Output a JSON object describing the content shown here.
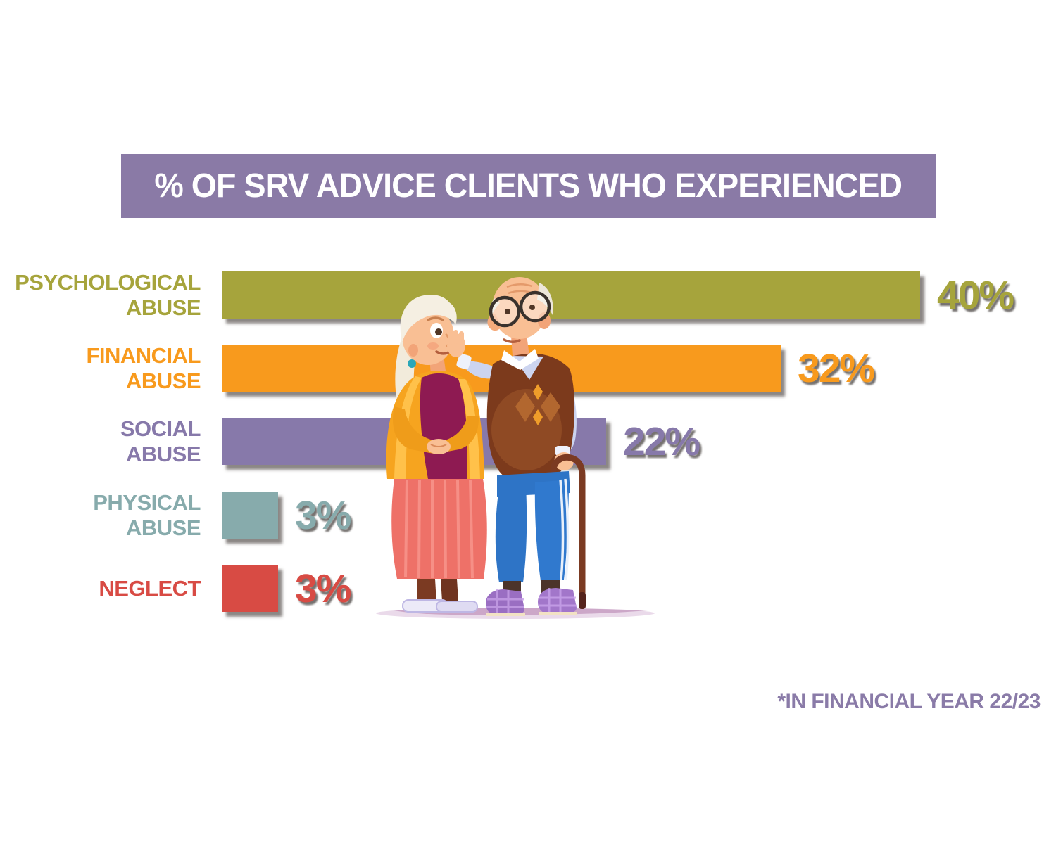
{
  "title": {
    "text": "% OF SRV ADVICE CLIENTS WHO EXPERIENCED"
  },
  "colors": {
    "banner_bg": "#8a7aa6",
    "title_text": "#ffffff",
    "footnote": "#8a7ba8"
  },
  "chart_data": {
    "type": "bar",
    "orientation": "horizontal",
    "title": "% OF SRV ADVICE CLIENTS WHO EXPERIENCED",
    "unit": "percent",
    "xlim": [
      0,
      42
    ],
    "grid": false,
    "legend": false,
    "value_labels_shown": true,
    "categories": [
      "PSYCHOLOGICAL ABUSE",
      "FINANCIAL ABUSE",
      "SOCIAL ABUSE",
      "PHYSICAL ABUSE",
      "NEGLECT"
    ],
    "values": [
      40,
      32,
      22,
      3,
      3
    ],
    "rows": [
      {
        "id": "psychological-abuse",
        "label_lines": [
          "PSYCHOLOGICAL",
          "ABUSE"
        ],
        "value": 40,
        "value_label": "40%",
        "color": "#a6a43c"
      },
      {
        "id": "financial-abuse",
        "label_lines": [
          "FINANCIAL",
          "ABUSE"
        ],
        "value": 32,
        "value_label": "32%",
        "color": "#f89a1d"
      },
      {
        "id": "social-abuse",
        "label_lines": [
          "SOCIAL",
          "ABUSE"
        ],
        "value": 22,
        "value_label": "22%",
        "color": "#8779aa"
      },
      {
        "id": "physical-abuse",
        "label_lines": [
          "PHYSICAL",
          "ABUSE"
        ],
        "value": 3,
        "value_label": "3%",
        "color": "#87abac"
      },
      {
        "id": "neglect",
        "label_lines": [
          "NEGLECT"
        ],
        "value": 3,
        "value_label": "3%",
        "color": "#d84b44"
      }
    ]
  },
  "footnote": {
    "text": "*IN FINANCIAL YEAR 22/23"
  },
  "illustration": {
    "name": "elderly-couple",
    "description": "Cartoon elderly woman and elderly man with a cane, talking"
  }
}
